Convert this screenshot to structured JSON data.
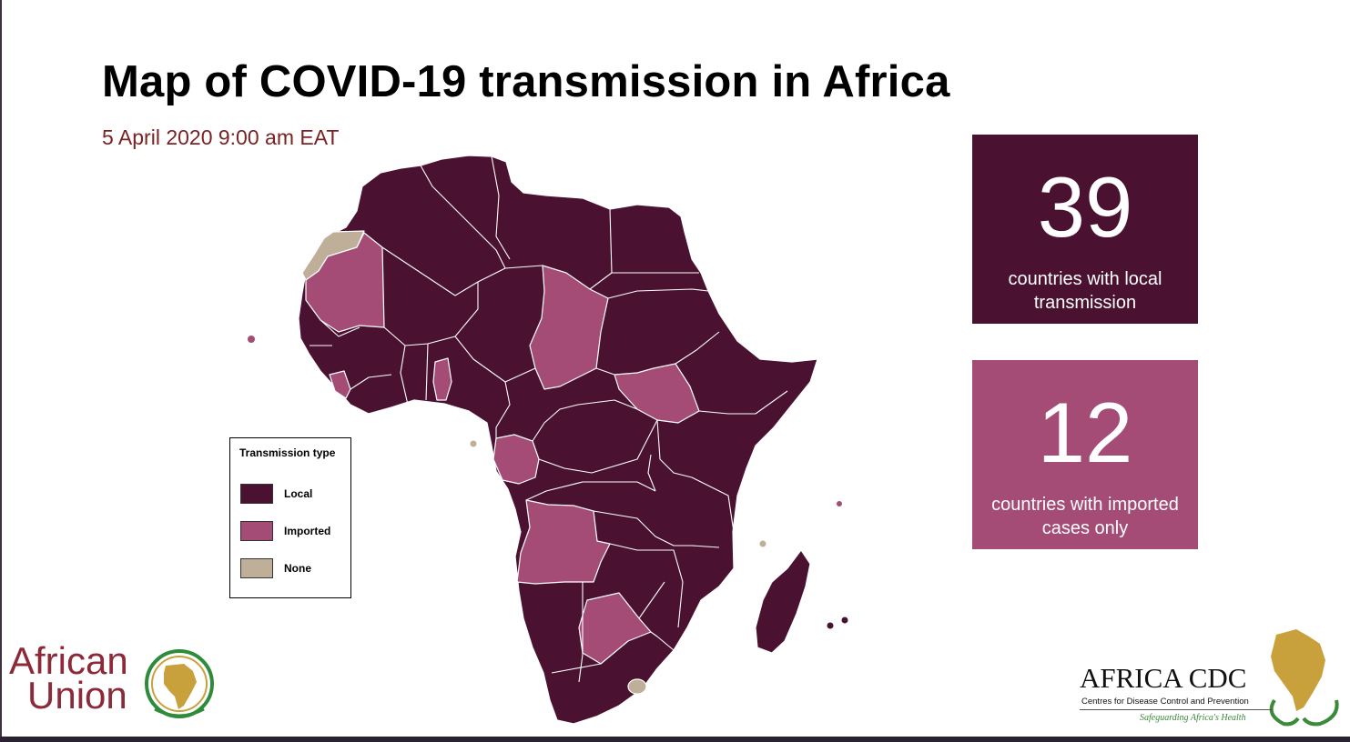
{
  "title": "Map of COVID-19 transmission in Africa",
  "subtitle": "5 April 2020 9:00 am EAT",
  "colors": {
    "local": "#4a1230",
    "imported": "#a44c76",
    "none": "#bfae98",
    "border": "#ffffff",
    "title": "#000000",
    "subtitle": "#7b2222"
  },
  "stats": {
    "local": {
      "value": "39",
      "label": "countries with local transmission"
    },
    "imported": {
      "value": "12",
      "label": "countries with imported cases only"
    }
  },
  "legend": {
    "title": "Transmission type",
    "items": [
      {
        "key": "local",
        "label": "Local"
      },
      {
        "key": "imported",
        "label": "Imported"
      },
      {
        "key": "none",
        "label": "None"
      }
    ]
  },
  "logos": {
    "african_union": {
      "line1": "African",
      "line2": "Union"
    },
    "africa_cdc": {
      "name": "AFRICA CDC",
      "subtitle": "Centres for Disease Control and Prevention",
      "tagline": "Safeguarding Africa's Health"
    }
  }
}
